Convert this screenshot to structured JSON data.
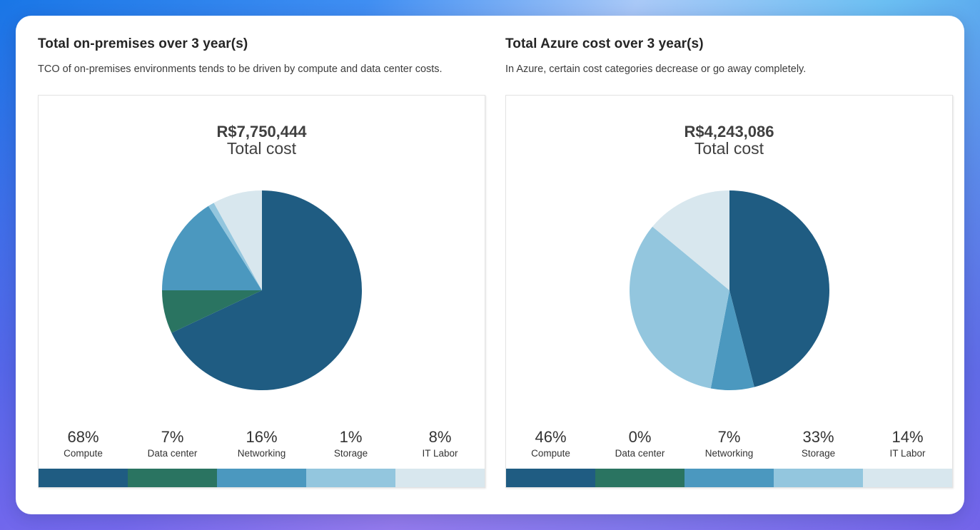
{
  "colors": {
    "compute": "#1f5c82",
    "data_center": "#2a7461",
    "networking": "#4b98bf",
    "storage": "#93c6de",
    "it_labor": "#d8e7ee"
  },
  "panels": [
    {
      "title": "Total on-premises over 3 year(s)",
      "subtitle": "TCO of on-premises environments tends to be driven by compute and data center costs.",
      "total_value": "R$7,750,444",
      "total_label": "Total cost"
    },
    {
      "title": "Total Azure cost over 3 year(s)",
      "subtitle": "In Azure, certain cost categories decrease or go away completely.",
      "total_value": "R$4,243,086",
      "total_label": "Total cost"
    }
  ],
  "chart_data": [
    {
      "type": "pie",
      "title": "Total on-premises over 3 year(s)",
      "categories": [
        "Compute",
        "Data center",
        "Networking",
        "Storage",
        "IT Labor"
      ],
      "labels": [
        "68%",
        "7%",
        "16%",
        "1%",
        "8%"
      ],
      "values": [
        68,
        7,
        16,
        1,
        8
      ]
    },
    {
      "type": "pie",
      "title": "Total Azure cost over 3 year(s)",
      "categories": [
        "Compute",
        "Data center",
        "Networking",
        "Storage",
        "IT Labor"
      ],
      "labels": [
        "46%",
        "0%",
        "7%",
        "33%",
        "14%"
      ],
      "values": [
        46,
        0,
        7,
        33,
        14
      ]
    }
  ]
}
